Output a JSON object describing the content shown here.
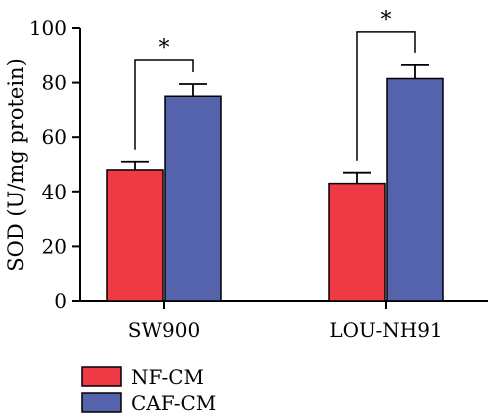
{
  "chart_data": {
    "type": "bar",
    "categories": [
      "SW900",
      "LOU-NH91"
    ],
    "series": [
      {
        "name": "NF-CM",
        "values": [
          48,
          43
        ],
        "errors": [
          3,
          4
        ],
        "color": "#ef3a45"
      },
      {
        "name": "CAF-CM",
        "values": [
          75,
          81.5
        ],
        "errors": [
          4.5,
          5
        ],
        "color": "#5463ab"
      }
    ],
    "ylabel": "SOD (U/mg protein)",
    "xlabel": "",
    "ylim": [
      0,
      100
    ],
    "yticks": [
      0,
      20,
      40,
      60,
      80,
      100
    ],
    "significance": [
      {
        "category": "SW900",
        "label": "*"
      },
      {
        "category": "LOU-NH91",
        "label": "*"
      }
    ],
    "legend_position": "bottom-left",
    "grid": false
  }
}
